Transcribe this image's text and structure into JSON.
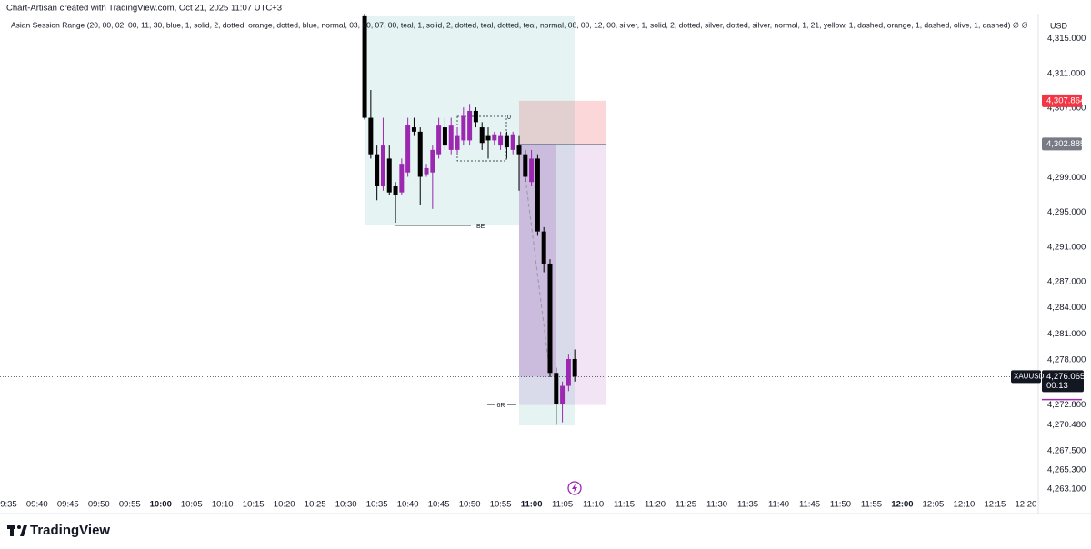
{
  "chart_data": {
    "type": "candlestick",
    "title": "Chart-Artisan created with TradingView.com, Oct 21, 2025 11:07 UTC+3",
    "indicator": "Asian Session Range (20, 00, 02, 00, 11, 30, blue, 1, solid, 2, dotted, orange, dotted, blue, normal, 03, 00, 07, 00, teal, 1, solid, 2, dotted, teal, dotted, teal, normal, 08, 00, 12, 00, silver, 1, solid, 2, dotted, silver, dotted, silver, normal, 1, 21, yellow, 1, dashed, orange, 1, dashed, olive, 1, dashed)  ∅  ∅",
    "currency": "USD",
    "symbol": "XAUUSD",
    "countdown": "00:13",
    "brand": "TradingView",
    "annotations": [
      "BE",
      "0",
      "6R"
    ],
    "up_color": "#9c27b0",
    "down_color": "#000000",
    "x": [
      "10:33",
      "10:34",
      "10:35",
      "10:36",
      "10:37",
      "10:38",
      "10:39",
      "10:40",
      "10:41",
      "10:42",
      "10:43",
      "10:44",
      "10:45",
      "10:46",
      "10:47",
      "10:48",
      "10:49",
      "10:50",
      "10:51",
      "10:52",
      "10:53",
      "10:54",
      "10:55",
      "10:56",
      "10:57",
      "10:58",
      "10:59",
      "11:00",
      "11:01",
      "11:02",
      "11:03",
      "11:04",
      "11:05",
      "11:06",
      "11:07"
    ],
    "open": [
      4317.6,
      4305.9,
      4301.7,
      4298.0,
      4301.2,
      4298.0,
      4297.3,
      4299.6,
      4304.8,
      4304.3,
      4299.4,
      4299.6,
      4301.7,
      4304.8,
      4302.2,
      4302.2,
      4303.3,
      4303.3,
      4306.7,
      4304.8,
      4303.8,
      4303.3,
      4302.7,
      4303.8,
      4302.2,
      4302.7,
      4301.7,
      4298.5,
      4301.2,
      4292.8,
      4289.1,
      4276.5,
      4272.9,
      4275.0,
      4278.1
    ],
    "high": [
      4317.9,
      4309.1,
      4302.7,
      4305.9,
      4302.7,
      4298.5,
      4301.2,
      4305.9,
      4305.9,
      4304.8,
      4300.6,
      4302.7,
      4305.9,
      4305.9,
      4305.9,
      4304.8,
      4307.1,
      4307.5,
      4307.1,
      4305.4,
      4304.8,
      4304.3,
      4304.3,
      4304.3,
      4304.3,
      4303.8,
      4302.2,
      4302.2,
      4301.7,
      4293.3,
      4289.6,
      4277.1,
      4275.5,
      4278.6,
      4279.2
    ],
    "low": [
      4305.7,
      4301.2,
      4296.4,
      4297.5,
      4297.0,
      4293.8,
      4297.0,
      4299.1,
      4303.8,
      4295.9,
      4299.1,
      4295.4,
      4301.2,
      4302.2,
      4301.7,
      4301.7,
      4302.7,
      4302.7,
      4304.8,
      4302.2,
      4301.2,
      4302.7,
      4302.2,
      4301.2,
      4301.7,
      4297.5,
      4298.5,
      4298.0,
      4292.3,
      4288.1,
      4276.0,
      4270.5,
      4270.8,
      4274.4,
      4275.5
    ],
    "close": [
      4305.9,
      4301.7,
      4298.0,
      4302.7,
      4297.3,
      4297.0,
      4300.6,
      4305.1,
      4304.3,
      4299.1,
      4300.1,
      4302.2,
      4305.0,
      4302.7,
      4305.0,
      4303.8,
      4306.1,
      4306.7,
      4305.4,
      4303.0,
      4303.3,
      4304.0,
      4303.8,
      4302.5,
      4304.0,
      4301.7,
      4299.1,
      4301.2,
      4292.8,
      4289.1,
      4276.5,
      4272.9,
      4275.0,
      4278.1,
      4276.065
    ],
    "xlim": [
      "09:34",
      "12:22"
    ],
    "xticks": [
      "09:35",
      "09:40",
      "09:45",
      "09:50",
      "09:55",
      "10:00",
      "10:05",
      "10:10",
      "10:15",
      "10:20",
      "10:25",
      "10:30",
      "10:35",
      "10:40",
      "10:45",
      "10:50",
      "10:55",
      "11:00",
      "11:05",
      "11:10",
      "11:15",
      "11:20",
      "11:25",
      "11:30",
      "11:35",
      "11:40",
      "11:45",
      "11:50",
      "11:55",
      "12:00",
      "12:05",
      "12:10",
      "12:15",
      "12:20"
    ],
    "ylim": [
      4260.5,
      4317.9
    ],
    "yticks": [
      {
        "value": 4315,
        "label": "4,315.000"
      },
      {
        "value": 4311,
        "label": "4,311.000"
      },
      {
        "value": 4307,
        "label": "4,307.000"
      },
      {
        "value": 4299,
        "label": "4,299.000"
      },
      {
        "value": 4295,
        "label": "4,295.000"
      },
      {
        "value": 4291,
        "label": "4,291.000"
      },
      {
        "value": 4287,
        "label": "4,287.000"
      },
      {
        "value": 4284,
        "label": "4,284.000"
      },
      {
        "value": 4281,
        "label": "4,281.000"
      },
      {
        "value": 4278,
        "label": "4,278.000"
      },
      {
        "value": 4270.48,
        "label": "4,270.480"
      },
      {
        "value": 4267.5,
        "label": "4,267.500"
      },
      {
        "value": 4265.3,
        "label": "4,265.300"
      },
      {
        "value": 4263.1,
        "label": "4,263.100"
      }
    ],
    "last": {
      "value": 4276.065,
      "label": "4,276.065"
    },
    "position": {
      "start": "10:58",
      "end": "11:12",
      "entry": {
        "value": 4302.885,
        "label": "4,302.885"
      },
      "stop": {
        "value": 4307.864,
        "label": "4,307.864"
      },
      "target": {
        "value": 4272.8,
        "label": "4,272.800"
      }
    }
  }
}
